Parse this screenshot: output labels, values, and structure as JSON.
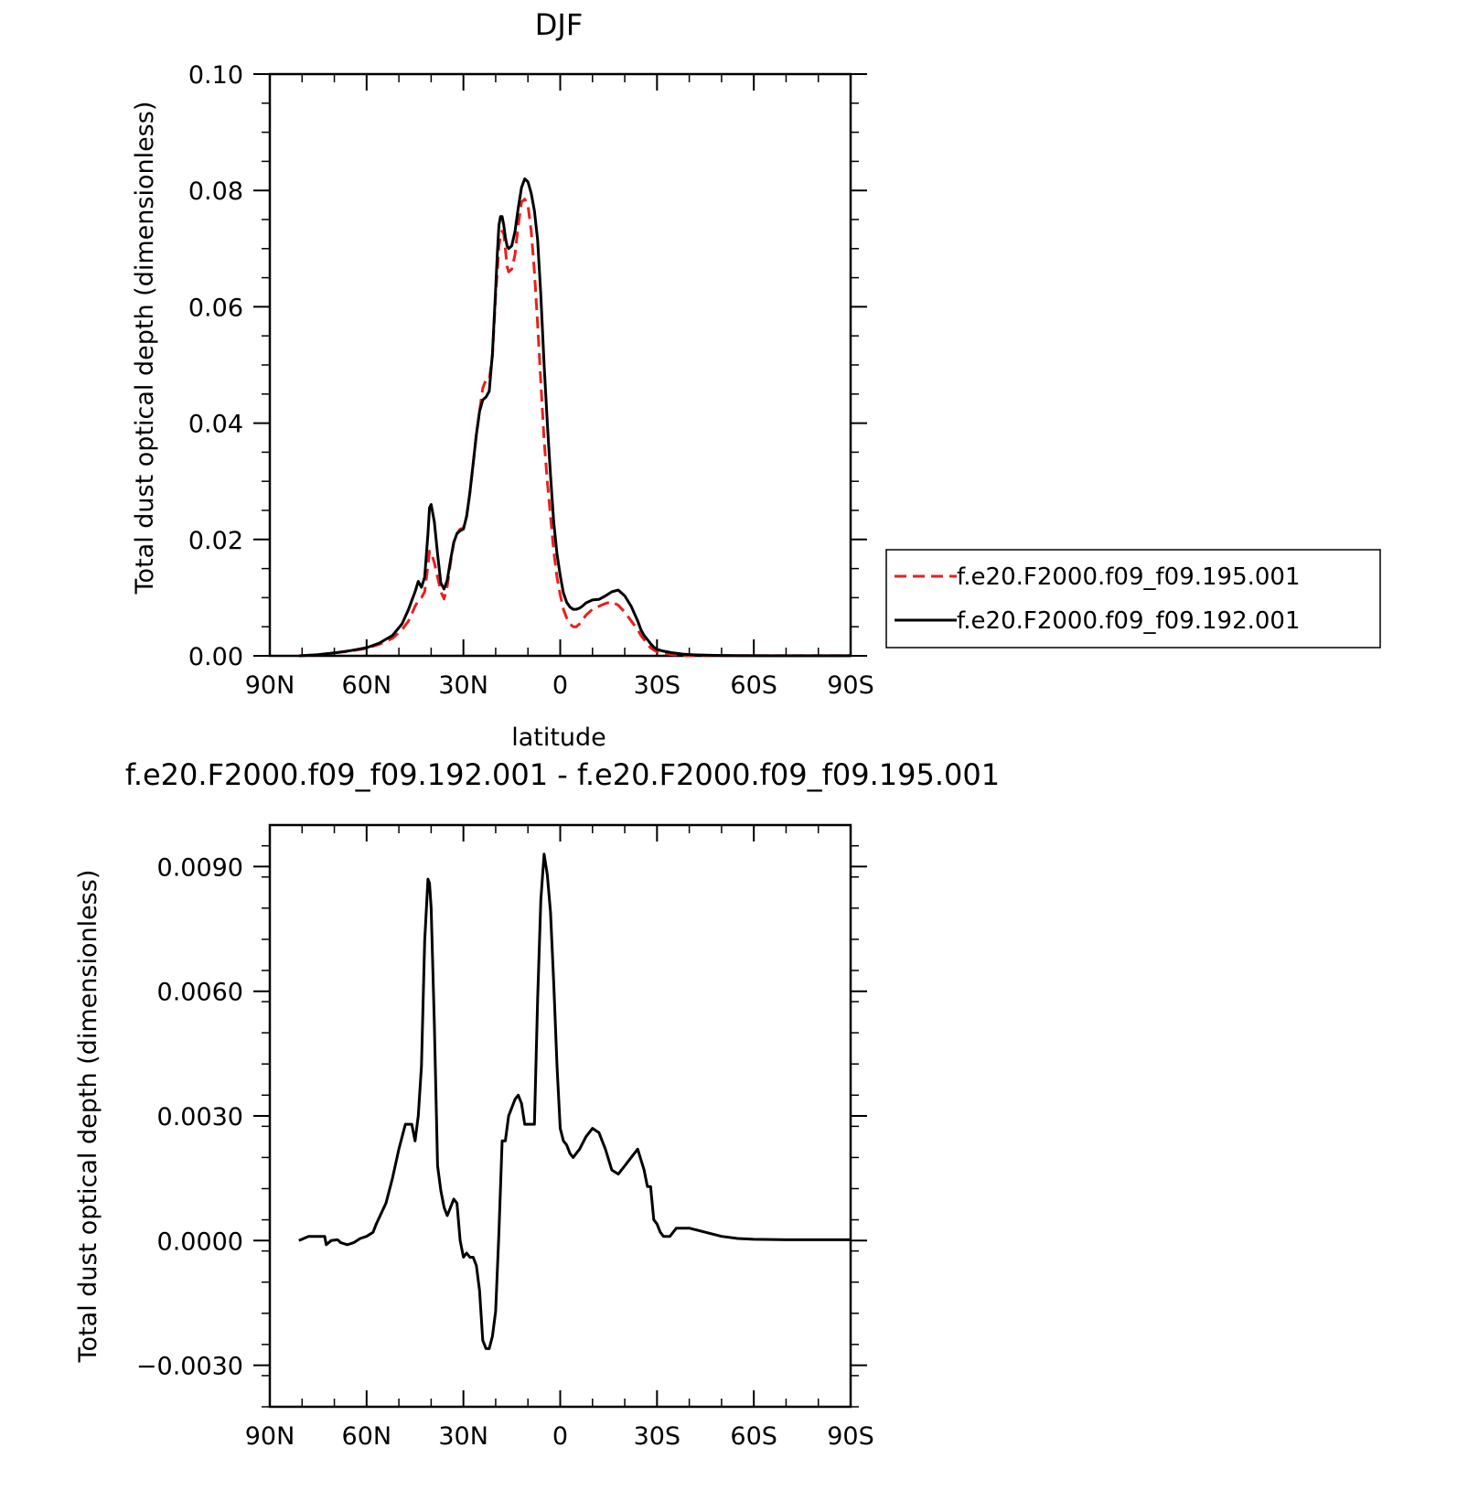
{
  "colors": {
    "series_a": "#e8201e",
    "series_b": "#000000"
  },
  "chart_data": [
    {
      "type": "line",
      "title": "DJF",
      "xlabel": "latitude",
      "ylabel": "Total dust optical depth (dimensionless)",
      "xlim": [
        90,
        -90
      ],
      "ylim": [
        0,
        0.1
      ],
      "xticks": [
        90,
        60,
        30,
        0,
        -30,
        -60,
        -90
      ],
      "xtick_labels": [
        "90N",
        "60N",
        "30N",
        "0",
        "30S",
        "60S",
        "90S"
      ],
      "yticks": [
        0,
        0.02,
        0.04,
        0.06,
        0.08,
        0.1
      ],
      "ytick_labels": [
        "0.00",
        "0.02",
        "0.04",
        "0.06",
        "0.08",
        "0.10"
      ],
      "legend": "right",
      "series": [
        {
          "name": "f.e20.F2000.f09_f09.195.001",
          "style": "dashed",
          "color": "#e8201e",
          "x": [
            81,
            75,
            70,
            65,
            60,
            56,
            52,
            49,
            47,
            46,
            45,
            44,
            43,
            42,
            41,
            40.5,
            40,
            39,
            38,
            37,
            36,
            35,
            34,
            33,
            32,
            31,
            30,
            29,
            28,
            27,
            26,
            25,
            24,
            23,
            22,
            21,
            20,
            19.5,
            19,
            18.5,
            18,
            17.5,
            17,
            16.5,
            16,
            15,
            14,
            13,
            12,
            11,
            10,
            9,
            8,
            7,
            6,
            5,
            4,
            3,
            2,
            1,
            0,
            -1,
            -2,
            -3,
            -4,
            -5,
            -6,
            -7,
            -8,
            -10,
            -12,
            -14,
            -16,
            -18,
            -20,
            -22,
            -24,
            -25,
            -26,
            -27,
            -28,
            -29,
            -30,
            -32,
            -35,
            -38,
            -42,
            -48,
            -55,
            -65,
            -75,
            -85,
            -90
          ],
          "y": [
            0,
            0.0002,
            0.0005,
            0.0008,
            0.0013,
            0.002,
            0.003,
            0.0045,
            0.006,
            0.0072,
            0.0085,
            0.0095,
            0.01,
            0.011,
            0.0155,
            0.018,
            0.0178,
            0.016,
            0.0135,
            0.011,
            0.0098,
            0.012,
            0.016,
            0.0195,
            0.021,
            0.0218,
            0.022,
            0.024,
            0.028,
            0.033,
            0.038,
            0.042,
            0.046,
            0.0475,
            0.0475,
            0.0515,
            0.062,
            0.066,
            0.0705,
            0.072,
            0.073,
            0.0725,
            0.07,
            0.067,
            0.066,
            0.0665,
            0.069,
            0.074,
            0.078,
            0.0785,
            0.0775,
            0.073,
            0.066,
            0.057,
            0.047,
            0.037,
            0.03,
            0.024,
            0.018,
            0.0135,
            0.0105,
            0.008,
            0.0065,
            0.0055,
            0.005,
            0.005,
            0.0055,
            0.0062,
            0.007,
            0.008,
            0.0085,
            0.009,
            0.0093,
            0.0087,
            0.0075,
            0.006,
            0.0045,
            0.0035,
            0.0028,
            0.002,
            0.0014,
            0.001,
            0.0007,
            0.0004,
            0.0002,
            0.0001,
            5e-05,
            3e-05,
            2e-05,
            1e-05,
            1e-05,
            1e-05,
            1e-05
          ]
        },
        {
          "name": "f.e20.F2000.f09_f09.192.001",
          "style": "solid",
          "color": "#000000",
          "x": [
            81,
            75,
            70,
            65,
            60,
            56,
            52,
            49,
            47,
            46,
            45,
            44,
            43,
            42,
            41,
            40.5,
            40,
            39,
            38,
            37,
            36,
            35,
            34,
            33,
            32,
            31,
            30,
            29,
            28,
            27,
            26,
            25,
            24,
            23,
            22,
            21,
            20,
            19.5,
            19,
            18.5,
            18,
            17.5,
            17,
            16.5,
            16,
            15,
            14,
            13,
            12,
            11,
            10,
            9,
            8,
            7,
            6,
            5,
            4,
            3,
            2,
            1,
            0,
            -1,
            -2,
            -3,
            -4,
            -5,
            -6,
            -7,
            -8,
            -10,
            -12,
            -14,
            -16,
            -18,
            -20,
            -22,
            -24,
            -25,
            -26,
            -27,
            -28,
            -29,
            -30,
            -32,
            -35,
            -38,
            -42,
            -48,
            -55,
            -65,
            -75,
            -85,
            -90
          ],
          "y": [
            0,
            0.0002,
            0.0005,
            0.0009,
            0.0014,
            0.0022,
            0.0035,
            0.0055,
            0.008,
            0.0095,
            0.011,
            0.0128,
            0.0118,
            0.0135,
            0.021,
            0.0255,
            0.026,
            0.023,
            0.0175,
            0.0125,
            0.0115,
            0.013,
            0.0165,
            0.0195,
            0.021,
            0.0215,
            0.0218,
            0.024,
            0.028,
            0.033,
            0.038,
            0.042,
            0.044,
            0.0445,
            0.0455,
            0.052,
            0.063,
            0.069,
            0.074,
            0.0755,
            0.0755,
            0.074,
            0.072,
            0.0705,
            0.07,
            0.0705,
            0.073,
            0.077,
            0.0805,
            0.082,
            0.0815,
            0.0795,
            0.0765,
            0.0715,
            0.062,
            0.05,
            0.04,
            0.031,
            0.023,
            0.0175,
            0.0138,
            0.0108,
            0.0092,
            0.0084,
            0.008,
            0.008,
            0.0082,
            0.0086,
            0.0091,
            0.0096,
            0.0097,
            0.0103,
            0.011,
            0.0113,
            0.0103,
            0.0085,
            0.006,
            0.0045,
            0.0035,
            0.0028,
            0.0021,
            0.0015,
            0.0011,
            0.0008,
            0.0005,
            0.0003,
            0.00015,
            8e-05,
            4e-05,
            2e-05,
            1e-05,
            1e-05,
            1e-05
          ]
        }
      ]
    },
    {
      "type": "line",
      "title": "f.e20.F2000.f09_f09.192.001 - f.e20.F2000.f09_f09.195.001",
      "xlabel": "latitude",
      "ylabel": "Total dust optical depth (dimensionless)",
      "xlim": [
        90,
        -90
      ],
      "ylim": [
        -0.004,
        0.01
      ],
      "xticks": [
        90,
        60,
        30,
        0,
        -30,
        -60,
        -90
      ],
      "xtick_labels": [
        "90N",
        "60N",
        "30N",
        "0",
        "30S",
        "60S",
        "90S"
      ],
      "yticks": [
        -0.003,
        0,
        0.003,
        0.006,
        0.009
      ],
      "ytick_labels": [
        "−0.0030",
        "0.0000",
        "0.0030",
        "0.0060",
        "0.0090"
      ],
      "series": [
        {
          "name": "",
          "style": "solid",
          "color": "#000000",
          "x": [
            81,
            78,
            73,
            72.5,
            71,
            69,
            68,
            66,
            64,
            62,
            60,
            58,
            57,
            54,
            52,
            50,
            48,
            46,
            45,
            44,
            43,
            42,
            41,
            40.5,
            40,
            39,
            38,
            37,
            36,
            35,
            34,
            33,
            32,
            31,
            30,
            29,
            28,
            27,
            26,
            25,
            24,
            23,
            22,
            21,
            20,
            19,
            18,
            17,
            16,
            15,
            14,
            13,
            12,
            11,
            10,
            8,
            7,
            6,
            5,
            4,
            3,
            2,
            1,
            0,
            -1,
            -2,
            -3,
            -4,
            -6,
            -8,
            -10,
            -12,
            -14,
            -16,
            -18,
            -20,
            -22,
            -24,
            -26,
            -27,
            -28,
            -29,
            -30,
            -31,
            -32,
            -34,
            -36,
            -38,
            -40,
            -45,
            -50,
            -55,
            -60,
            -70,
            -80,
            -90
          ],
          "y": [
            0,
            0.0001,
            0.0001,
            -0.0001,
            0,
            2e-05,
            -5e-05,
            -0.0001,
            -5e-05,
            5e-05,
            0.0001,
            0.0002,
            0.0004,
            0.0009,
            0.0015,
            0.0022,
            0.0028,
            0.0028,
            0.0024,
            0.003,
            0.0042,
            0.0072,
            0.0087,
            0.0086,
            0.008,
            0.0052,
            0.0018,
            0.0012,
            0.0008,
            0.0006,
            0.0008,
            0.001,
            0.0009,
            0,
            -0.0004,
            -0.0003,
            -0.0004,
            -0.0004,
            -0.0006,
            -0.0012,
            -0.0024,
            -0.0026,
            -0.0026,
            -0.0023,
            -0.0017,
            0.0002,
            0.0024,
            0.0024,
            0.003,
            0.0032,
            0.0034,
            0.0035,
            0.0033,
            0.0028,
            0.0028,
            0.0028,
            0.0058,
            0.0082,
            0.0093,
            0.0088,
            0.0079,
            0.0062,
            0.0042,
            0.0027,
            0.0024,
            0.0023,
            0.0021,
            0.002,
            0.0022,
            0.0025,
            0.0027,
            0.0026,
            0.0022,
            0.0017,
            0.0016,
            0.0018,
            0.002,
            0.0022,
            0.0017,
            0.0013,
            0.0013,
            0.0005,
            0.0004,
            0.0002,
            0.0001,
            0.0001,
            0.0003,
            0.0003,
            0.0003,
            0.0002,
            0.0001,
            5e-05,
            3e-05,
            2e-05,
            2e-05,
            2e-05
          ]
        }
      ]
    }
  ]
}
